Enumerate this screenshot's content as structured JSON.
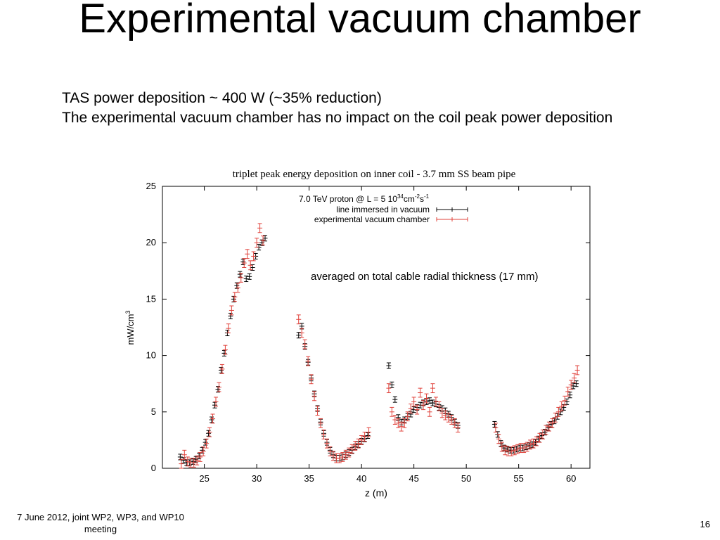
{
  "slide": {
    "title": "Experimental vacuum chamber",
    "bullets": [
      "TAS power deposition ~ 400 W (~35% reduction)",
      "The experimental vacuum chamber has no impact on the coil peak power deposition"
    ],
    "footer": "7 June 2012, joint WP2, WP3, and WP10 meeting",
    "page_number": "16"
  },
  "chart_data": {
    "type": "scatter",
    "title": "triplet peak energy deposition on inner coil - 3.7 mm SS beam pipe",
    "xlabel": "z (m)",
    "ylabel": "mW/cm",
    "ylabel_sup": "3",
    "xlim": [
      21,
      61.8
    ],
    "ylim": [
      0,
      25
    ],
    "xticks": [
      25,
      30,
      35,
      40,
      45,
      50,
      55,
      60
    ],
    "yticks": [
      0,
      5,
      10,
      15,
      20,
      25
    ],
    "grid": false,
    "legend_position": "top-right",
    "legend_header": "7.0 TeV proton @ L = 5 10",
    "legend_header_sup": "34",
    "legend_header_unit": "cm",
    "legend_header_unit_sup": "-2",
    "legend_header_unit2": "s",
    "legend_header_unit2_sup": "-1",
    "annotation": "averaged on total cable radial thickness (17 mm)",
    "series": [
      {
        "name": "line immersed in vacuum",
        "color": "#000000",
        "x": [
          22.7,
          23.0,
          23.3,
          23.6,
          23.9,
          24.2,
          24.5,
          24.8,
          25.1,
          25.4,
          25.7,
          26.0,
          26.3,
          26.6,
          26.9,
          27.2,
          27.5,
          27.8,
          28.1,
          28.4,
          28.7,
          29.0,
          29.3,
          29.6,
          29.9,
          30.2,
          30.5,
          30.8,
          34.0,
          34.3,
          34.6,
          34.9,
          35.2,
          35.5,
          35.8,
          36.1,
          36.4,
          36.7,
          37.0,
          37.3,
          37.6,
          37.9,
          38.2,
          38.5,
          38.8,
          39.1,
          39.4,
          39.7,
          40.0,
          40.3,
          40.6,
          42.6,
          42.9,
          43.2,
          43.5,
          43.8,
          44.1,
          44.4,
          44.7,
          45.0,
          45.3,
          45.6,
          45.9,
          46.2,
          46.5,
          46.8,
          47.1,
          47.4,
          47.7,
          48.0,
          48.3,
          48.6,
          48.9,
          49.2,
          52.7,
          53.0,
          53.3,
          53.6,
          53.9,
          54.2,
          54.5,
          54.8,
          55.1,
          55.4,
          55.7,
          56.0,
          56.3,
          56.6,
          56.9,
          57.2,
          57.5,
          57.8,
          58.1,
          58.4,
          58.7,
          59.0,
          59.3,
          59.6,
          59.9,
          60.2,
          60.5
        ],
        "y": [
          1.0,
          0.7,
          0.5,
          0.5,
          0.6,
          0.8,
          1.1,
          1.6,
          2.3,
          3.1,
          4.3,
          5.6,
          7.0,
          8.7,
          10.2,
          12.0,
          13.5,
          15.0,
          16.2,
          17.2,
          18.3,
          16.8,
          17.0,
          17.8,
          18.8,
          19.6,
          20.0,
          20.4,
          11.8,
          12.6,
          10.8,
          9.4,
          8.0,
          6.6,
          5.3,
          4.1,
          3.1,
          2.3,
          1.6,
          1.2,
          0.9,
          0.9,
          1.0,
          1.2,
          1.4,
          1.6,
          1.9,
          2.1,
          2.4,
          2.6,
          2.9,
          9.1,
          7.4,
          6.1,
          4.5,
          4.1,
          4.3,
          4.6,
          4.8,
          5.2,
          5.4,
          5.6,
          5.8,
          5.9,
          6.0,
          5.8,
          5.7,
          5.4,
          5.3,
          5.1,
          4.8,
          4.5,
          4.1,
          3.8,
          3.9,
          3.0,
          2.2,
          1.8,
          1.7,
          1.6,
          1.6,
          1.7,
          1.8,
          1.8,
          1.9,
          2.0,
          2.1,
          2.3,
          2.6,
          2.9,
          3.2,
          3.6,
          3.9,
          4.2,
          4.6,
          5.0,
          5.4,
          5.9,
          6.5,
          7.3,
          7.5
        ],
        "err": 0.25
      },
      {
        "name": "experimental vacuum chamber",
        "color": "#e0413a",
        "x": [
          22.8,
          23.1,
          23.4,
          23.7,
          24.0,
          24.3,
          24.6,
          24.9,
          25.2,
          25.5,
          25.8,
          26.1,
          26.4,
          26.7,
          27.0,
          27.3,
          27.6,
          27.9,
          28.2,
          28.5,
          28.8,
          29.1,
          29.4,
          29.7,
          30.0,
          30.3,
          30.6,
          34.0,
          34.3,
          34.6,
          34.9,
          35.2,
          35.5,
          35.8,
          36.1,
          36.4,
          36.7,
          37.0,
          37.3,
          37.6,
          37.9,
          38.2,
          38.5,
          38.8,
          39.1,
          39.4,
          39.7,
          40.0,
          40.3,
          40.7,
          42.6,
          42.9,
          43.2,
          43.5,
          43.8,
          44.1,
          44.4,
          44.7,
          45.0,
          45.3,
          45.6,
          45.9,
          46.2,
          46.5,
          46.8,
          47.1,
          47.4,
          47.7,
          48.0,
          48.3,
          48.6,
          48.9,
          49.2,
          52.8,
          53.1,
          53.4,
          53.7,
          54.0,
          54.3,
          54.6,
          54.9,
          55.2,
          55.5,
          55.8,
          56.1,
          56.4,
          56.7,
          57.0,
          57.3,
          57.6,
          57.9,
          58.2,
          58.5,
          58.8,
          59.1,
          59.4,
          59.7,
          60.0,
          60.3,
          60.6
        ],
        "y": [
          0.4,
          1.2,
          0.6,
          0.5,
          0.5,
          0.7,
          1.0,
          1.5,
          2.2,
          3.2,
          4.4,
          5.9,
          7.2,
          8.8,
          10.5,
          12.4,
          14.0,
          15.2,
          16.0,
          16.9,
          18.2,
          19.0,
          18.0,
          18.8,
          20.0,
          21.3,
          20.2,
          13.2,
          12.0,
          11.0,
          9.5,
          7.9,
          6.4,
          5.1,
          4.0,
          3.0,
          2.2,
          1.5,
          1.1,
          0.9,
          0.9,
          1.0,
          1.2,
          1.4,
          1.7,
          2.0,
          2.2,
          2.5,
          2.8,
          3.2,
          7.1,
          5.0,
          4.3,
          4.0,
          3.7,
          4.0,
          4.6,
          5.3,
          5.9,
          5.2,
          6.7,
          5.6,
          6.2,
          5.0,
          7.1,
          5.9,
          5.5,
          4.9,
          4.7,
          4.5,
          4.3,
          4.0,
          3.6,
          3.6,
          2.6,
          1.9,
          1.6,
          1.5,
          1.5,
          1.6,
          1.7,
          1.8,
          1.8,
          1.9,
          2.1,
          2.2,
          2.4,
          2.7,
          3.0,
          3.4,
          3.7,
          4.0,
          4.5,
          5.0,
          5.5,
          6.0,
          6.8,
          7.4,
          8.0,
          8.7
        ],
        "err": 0.4
      }
    ]
  }
}
